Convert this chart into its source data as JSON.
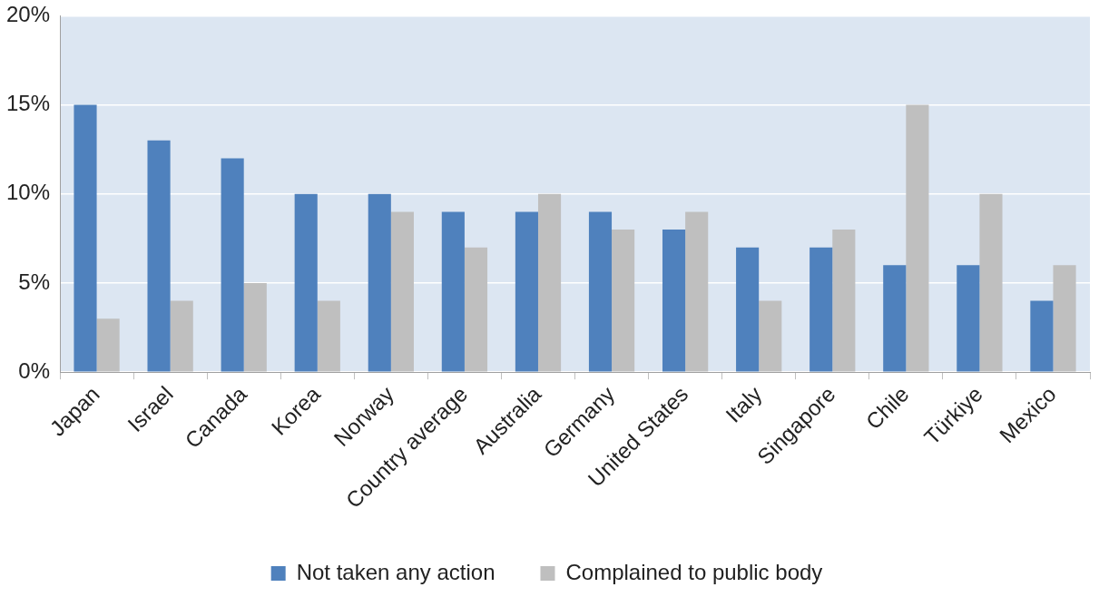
{
  "chart_data": {
    "type": "bar",
    "categories": [
      "Japan",
      "Israel",
      "Canada",
      "Korea",
      "Norway",
      "Country average",
      "Australia",
      "Germany",
      "United States",
      "Italy",
      "Singapore",
      "Chile",
      "Türkiye",
      "Mexico"
    ],
    "series": [
      {
        "name": "Not taken any action",
        "color": "#4f81bd",
        "values": [
          15,
          13,
          12,
          10,
          10,
          9,
          9,
          9,
          8,
          7,
          7,
          6,
          6,
          4
        ]
      },
      {
        "name": "Complained to public body",
        "color": "#bfbfbf",
        "values": [
          3,
          4,
          5,
          4,
          9,
          7,
          10,
          8,
          9,
          4,
          8,
          15,
          10,
          6
        ]
      }
    ],
    "ylim": [
      0,
      20
    ],
    "yticks": [
      {
        "value": 0,
        "label": "0%"
      },
      {
        "value": 5,
        "label": "5%"
      },
      {
        "value": 10,
        "label": "10%"
      },
      {
        "value": 15,
        "label": "15%"
      },
      {
        "value": 20,
        "label": "20%"
      }
    ],
    "grid": "y",
    "legend": "bottom"
  }
}
